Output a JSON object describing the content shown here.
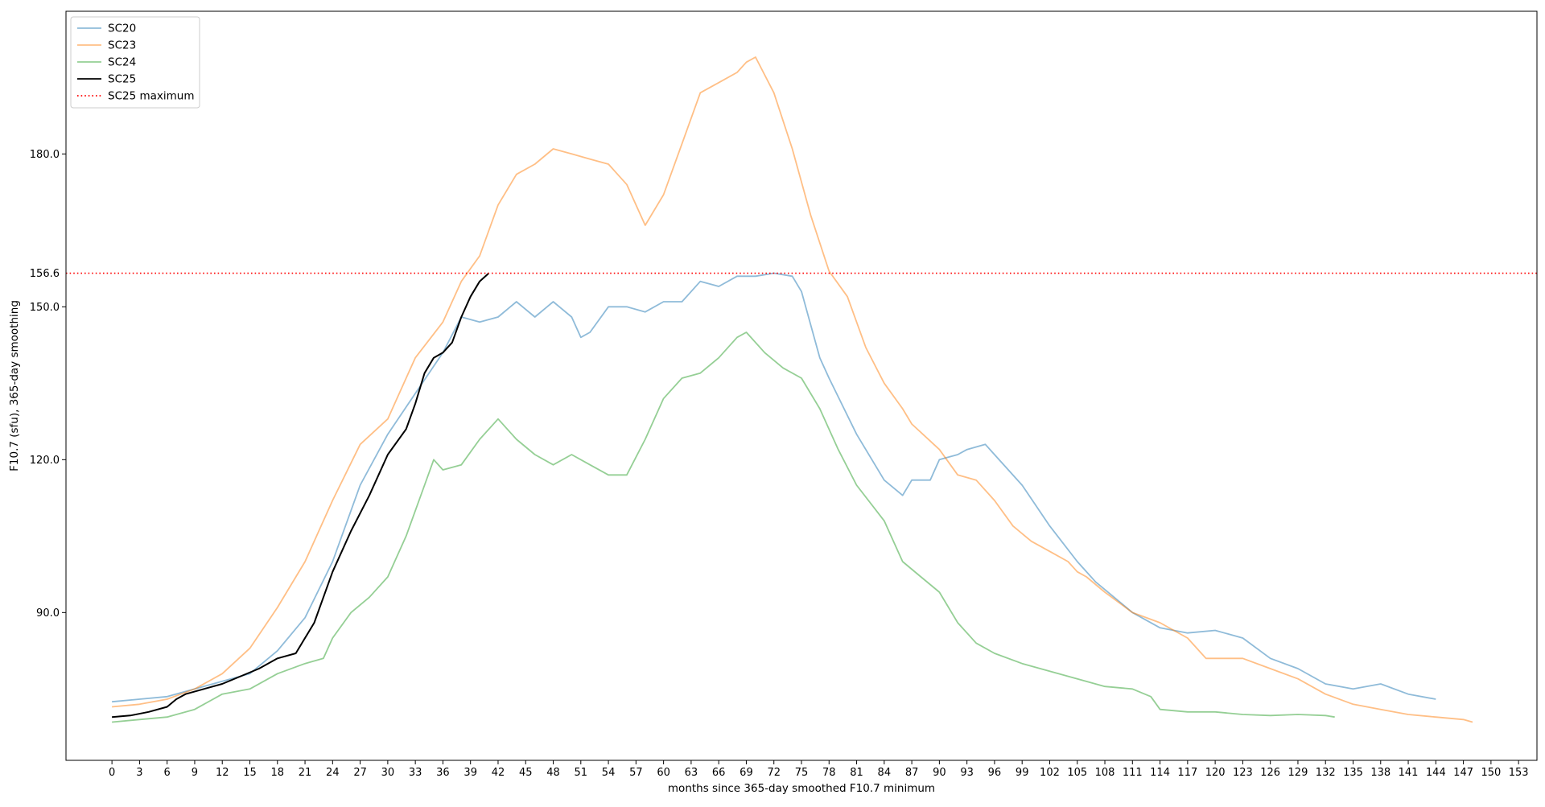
{
  "chart_data": {
    "type": "line",
    "title": "",
    "xlabel": "months since 365-day smoothed F10.7 minimum",
    "ylabel": "F10.7 (sfu), 365-day smoothing",
    "xlim": [
      -5,
      155
    ],
    "ylim": [
      61,
      208
    ],
    "x_ticks": [
      0,
      3,
      6,
      9,
      12,
      15,
      18,
      21,
      24,
      27,
      30,
      33,
      36,
      39,
      42,
      45,
      48,
      51,
      54,
      57,
      60,
      63,
      66,
      69,
      72,
      75,
      78,
      81,
      84,
      87,
      90,
      93,
      96,
      99,
      102,
      105,
      108,
      111,
      114,
      117,
      120,
      123,
      126,
      129,
      132,
      135,
      138,
      141,
      144,
      147,
      150,
      153
    ],
    "y_ticks": [
      "90.0",
      "120.0",
      "150.0",
      "180.0"
    ],
    "y_tick_values": [
      90,
      120,
      150,
      180
    ],
    "legend_position": "upper-left",
    "grid": false,
    "series": [
      {
        "name": "SC20",
        "color": "#1f77b4",
        "alpha": 0.5,
        "points": [
          [
            0,
            72.5
          ],
          [
            3,
            73
          ],
          [
            6,
            73.5
          ],
          [
            9,
            75
          ],
          [
            12,
            76.5
          ],
          [
            15,
            78
          ],
          [
            18,
            82.5
          ],
          [
            21,
            89
          ],
          [
            24,
            100
          ],
          [
            27,
            115
          ],
          [
            30,
            125
          ],
          [
            33,
            133
          ],
          [
            36,
            141
          ],
          [
            38,
            148
          ],
          [
            40,
            147
          ],
          [
            42,
            148
          ],
          [
            44,
            151
          ],
          [
            46,
            148
          ],
          [
            48,
            151
          ],
          [
            50,
            148
          ],
          [
            51,
            144
          ],
          [
            52,
            145
          ],
          [
            54,
            150
          ],
          [
            56,
            150
          ],
          [
            58,
            149
          ],
          [
            60,
            151
          ],
          [
            62,
            151
          ],
          [
            64,
            155
          ],
          [
            66,
            154
          ],
          [
            68,
            156
          ],
          [
            70,
            156
          ],
          [
            72,
            156.6
          ],
          [
            74,
            156
          ],
          [
            75,
            153
          ],
          [
            77,
            140
          ],
          [
            78,
            136
          ],
          [
            81,
            125
          ],
          [
            84,
            116
          ],
          [
            86,
            113
          ],
          [
            87,
            116
          ],
          [
            89,
            116
          ],
          [
            90,
            120
          ],
          [
            92,
            121
          ],
          [
            93,
            122
          ],
          [
            95,
            123
          ],
          [
            96,
            121
          ],
          [
            99,
            115
          ],
          [
            102,
            107
          ],
          [
            105,
            100
          ],
          [
            107,
            96
          ],
          [
            109,
            93
          ],
          [
            111,
            90
          ],
          [
            114,
            87
          ],
          [
            117,
            86
          ],
          [
            120,
            86.5
          ],
          [
            123,
            85
          ],
          [
            126,
            81
          ],
          [
            129,
            79
          ],
          [
            132,
            76
          ],
          [
            135,
            75
          ],
          [
            138,
            76
          ],
          [
            141,
            74
          ],
          [
            144,
            73
          ]
        ]
      },
      {
        "name": "SC23",
        "color": "#ff7f0e",
        "alpha": 0.5,
        "points": [
          [
            0,
            71.5
          ],
          [
            3,
            72
          ],
          [
            6,
            73
          ],
          [
            9,
            75
          ],
          [
            12,
            78
          ],
          [
            15,
            83
          ],
          [
            18,
            91
          ],
          [
            21,
            100
          ],
          [
            24,
            112
          ],
          [
            27,
            123
          ],
          [
            30,
            128
          ],
          [
            33,
            140
          ],
          [
            36,
            147
          ],
          [
            38,
            155
          ],
          [
            40,
            160
          ],
          [
            42,
            170
          ],
          [
            44,
            176
          ],
          [
            46,
            178
          ],
          [
            48,
            181
          ],
          [
            50,
            180
          ],
          [
            52,
            179
          ],
          [
            54,
            178
          ],
          [
            56,
            174
          ],
          [
            58,
            166
          ],
          [
            60,
            172
          ],
          [
            62,
            182
          ],
          [
            64,
            192
          ],
          [
            66,
            194
          ],
          [
            68,
            196
          ],
          [
            69,
            198
          ],
          [
            70,
            199
          ],
          [
            72,
            192
          ],
          [
            74,
            181
          ],
          [
            76,
            168
          ],
          [
            78,
            157
          ],
          [
            80,
            152
          ],
          [
            82,
            142
          ],
          [
            84,
            135
          ],
          [
            86,
            130
          ],
          [
            87,
            127
          ],
          [
            90,
            122
          ],
          [
            92,
            117
          ],
          [
            94,
            116
          ],
          [
            96,
            112
          ],
          [
            98,
            107
          ],
          [
            100,
            104
          ],
          [
            102,
            102
          ],
          [
            104,
            100
          ],
          [
            105,
            98
          ],
          [
            106,
            97
          ],
          [
            108,
            94
          ],
          [
            111,
            90
          ],
          [
            114,
            88
          ],
          [
            117,
            85
          ],
          [
            119,
            81
          ],
          [
            121,
            81
          ],
          [
            123,
            81
          ],
          [
            126,
            79
          ],
          [
            129,
            77
          ],
          [
            132,
            74
          ],
          [
            135,
            72
          ],
          [
            138,
            71
          ],
          [
            141,
            70
          ],
          [
            144,
            69.5
          ],
          [
            147,
            69
          ],
          [
            148,
            68.5
          ]
        ]
      },
      {
        "name": "SC24",
        "color": "#2ca02c",
        "alpha": 0.5,
        "points": [
          [
            0,
            68.5
          ],
          [
            3,
            69
          ],
          [
            6,
            69.5
          ],
          [
            9,
            71
          ],
          [
            12,
            74
          ],
          [
            15,
            75
          ],
          [
            18,
            78
          ],
          [
            21,
            80
          ],
          [
            23,
            81
          ],
          [
            24,
            85
          ],
          [
            26,
            90
          ],
          [
            28,
            93
          ],
          [
            30,
            97
          ],
          [
            32,
            105
          ],
          [
            34,
            115
          ],
          [
            35,
            120
          ],
          [
            36,
            118
          ],
          [
            38,
            119
          ],
          [
            40,
            124
          ],
          [
            42,
            128
          ],
          [
            44,
            124
          ],
          [
            46,
            121
          ],
          [
            48,
            119
          ],
          [
            50,
            121
          ],
          [
            52,
            119
          ],
          [
            54,
            117
          ],
          [
            56,
            117
          ],
          [
            58,
            124
          ],
          [
            60,
            132
          ],
          [
            62,
            136
          ],
          [
            64,
            137
          ],
          [
            66,
            140
          ],
          [
            68,
            144
          ],
          [
            69,
            145
          ],
          [
            71,
            141
          ],
          [
            73,
            138
          ],
          [
            75,
            136
          ],
          [
            77,
            130
          ],
          [
            79,
            122
          ],
          [
            81,
            115
          ],
          [
            84,
            108
          ],
          [
            86,
            100
          ],
          [
            88,
            97
          ],
          [
            90,
            94
          ],
          [
            92,
            88
          ],
          [
            94,
            84
          ],
          [
            96,
            82
          ],
          [
            99,
            80
          ],
          [
            102,
            78.5
          ],
          [
            105,
            77
          ],
          [
            108,
            75.5
          ],
          [
            111,
            75
          ],
          [
            113,
            73.5
          ],
          [
            114,
            71
          ],
          [
            117,
            70.5
          ],
          [
            120,
            70.5
          ],
          [
            123,
            70
          ],
          [
            126,
            69.8
          ],
          [
            129,
            70
          ],
          [
            132,
            69.8
          ],
          [
            133,
            69.5
          ]
        ]
      },
      {
        "name": "SC25",
        "color": "#000000",
        "alpha": 1,
        "points": [
          [
            0,
            69.5
          ],
          [
            2,
            69.8
          ],
          [
            4,
            70.5
          ],
          [
            6,
            71.5
          ],
          [
            7,
            73
          ],
          [
            8,
            74
          ],
          [
            10,
            75
          ],
          [
            12,
            76
          ],
          [
            14,
            77.5
          ],
          [
            16,
            79
          ],
          [
            18,
            81
          ],
          [
            20,
            82
          ],
          [
            22,
            88
          ],
          [
            24,
            98
          ],
          [
            26,
            106
          ],
          [
            28,
            113
          ],
          [
            30,
            121
          ],
          [
            32,
            126
          ],
          [
            33,
            131
          ],
          [
            34,
            137
          ],
          [
            35,
            140
          ],
          [
            36,
            141
          ],
          [
            37,
            143
          ],
          [
            38,
            148
          ],
          [
            39,
            152
          ],
          [
            40,
            155
          ],
          [
            41,
            156.6
          ]
        ]
      }
    ],
    "hline": {
      "name": "SC25 maximum",
      "y": 156.6,
      "label": "156.6",
      "color": "#ff0000"
    }
  }
}
